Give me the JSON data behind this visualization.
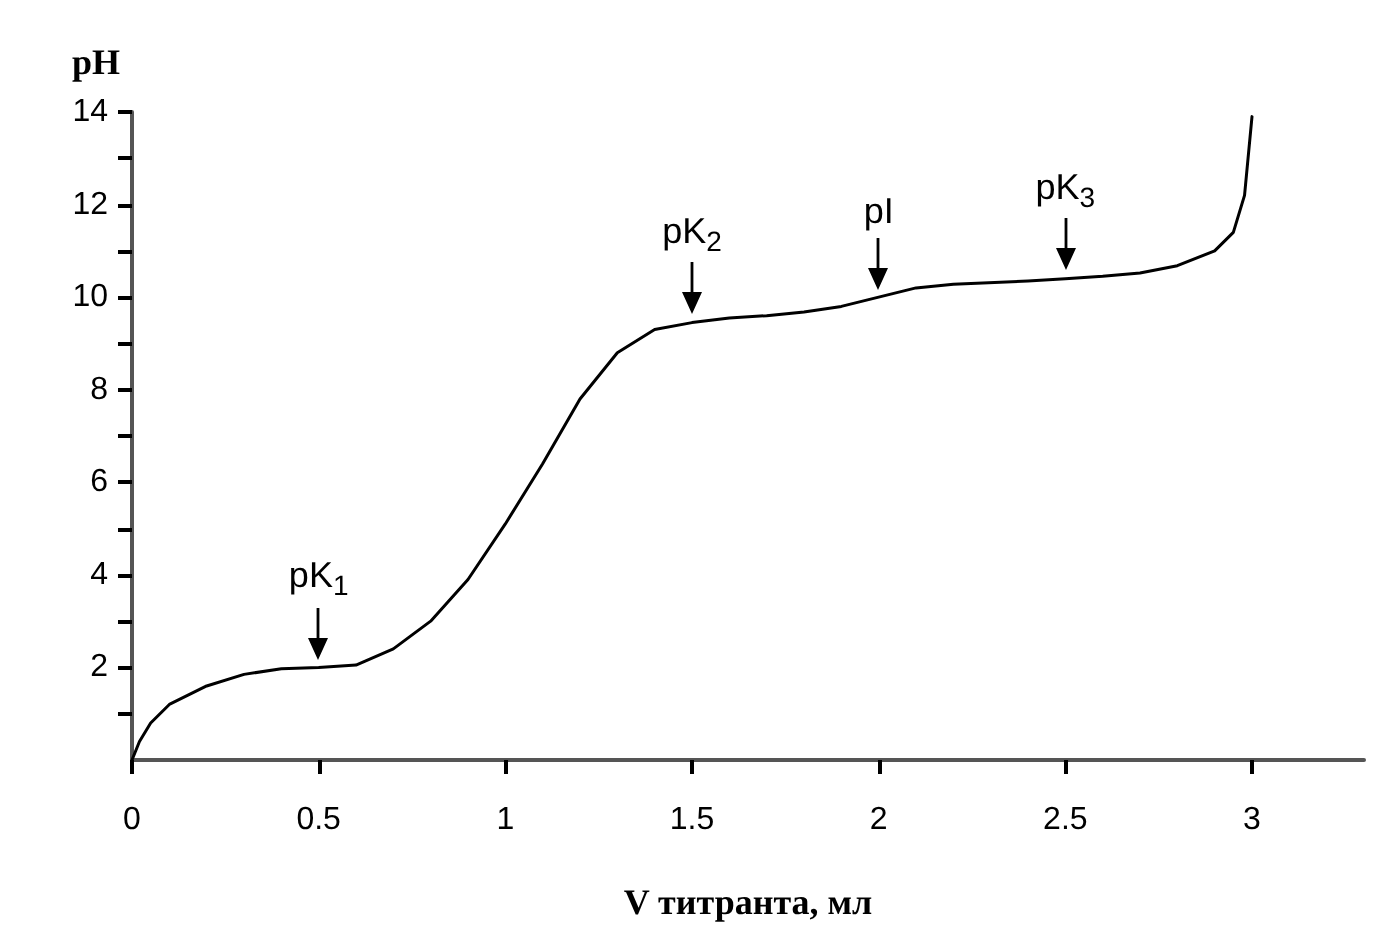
{
  "chart_data": {
    "type": "line",
    "xlabel": "V титранта, мл",
    "ylabel": "pH",
    "series": [
      {
        "color": "#000000",
        "x": [
          0,
          0.02,
          0.05,
          0.1,
          0.2,
          0.3,
          0.4,
          0.5,
          0.6,
          0.7,
          0.8,
          0.9,
          1.0,
          1.1,
          1.2,
          1.3,
          1.4,
          1.5,
          1.6,
          1.7,
          1.8,
          1.9,
          2.0,
          2.1,
          2.2,
          2.4,
          2.5,
          2.6,
          2.7,
          2.8,
          2.9,
          2.95,
          2.98,
          3.0
        ],
        "values": [
          0,
          0.4,
          0.8,
          1.2,
          1.6,
          1.85,
          1.97,
          2.0,
          2.05,
          2.4,
          3.0,
          3.9,
          5.1,
          6.4,
          7.8,
          8.8,
          9.3,
          9.45,
          9.55,
          9.6,
          9.68,
          9.8,
          10.0,
          10.2,
          10.28,
          10.35,
          10.4,
          10.45,
          10.52,
          10.68,
          11.0,
          11.4,
          12.2,
          13.9
        ]
      }
    ],
    "xlim": [
      0,
      3.3
    ],
    "xticks": [
      0,
      0.5,
      1,
      1.5,
      2,
      2.5,
      3
    ],
    "ylim": [
      0,
      14
    ],
    "yticks": [
      {
        "value": 1,
        "label": null
      },
      2,
      {
        "value": 3,
        "label": null
      },
      4,
      {
        "value": 5,
        "label": null
      },
      6,
      {
        "value": 7,
        "label": null
      },
      8,
      {
        "value": 9,
        "label": null
      },
      10,
      {
        "value": 11,
        "label": null
      },
      12,
      {
        "value": 13,
        "label": null
      },
      14
    ],
    "annotations": [
      {
        "text": "pK$_{1}$",
        "x": 0.5,
        "y": 2.0
      },
      {
        "text": "pK$_{2}$",
        "x": 1.5,
        "y": 9.45
      },
      {
        "text": "pI",
        "x": 2,
        "y": 10.0
      },
      {
        "text": "pK$_{3}$",
        "x": 2.5,
        "y": 10.4
      }
    ],
    "grid": false,
    "marker": "none",
    "line_style": "solid"
  }
}
